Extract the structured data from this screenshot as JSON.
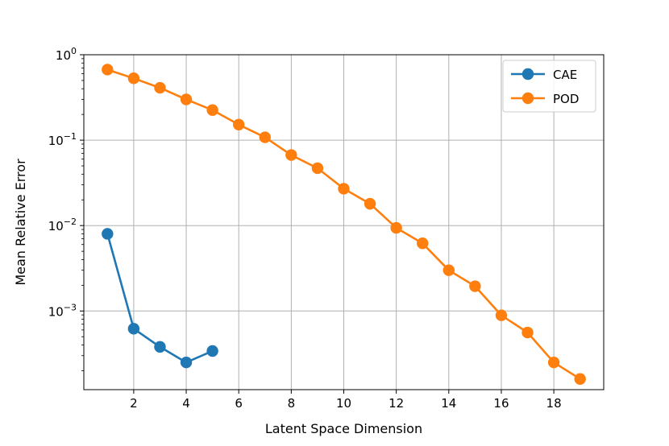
{
  "chart_data": {
    "type": "line",
    "xlabel": "Latent Space Dimension",
    "ylabel": "Mean Relative Error",
    "y_scale": "log",
    "xlim": [
      0.1,
      19.9
    ],
    "ylim": [
      0.00012,
      1.0
    ],
    "x_ticks": [
      2,
      4,
      6,
      8,
      10,
      12,
      14,
      16,
      18
    ],
    "x_tick_labels": [
      "2",
      "4",
      "6",
      "8",
      "10",
      "12",
      "14",
      "16",
      "18"
    ],
    "y_ticks": [
      0.001,
      0.01,
      0.1,
      1
    ],
    "y_tick_labels": [
      {
        "base": "10",
        "exp": "−3"
      },
      {
        "base": "10",
        "exp": "−2"
      },
      {
        "base": "10",
        "exp": "−1"
      },
      {
        "base": "10",
        "exp": "0"
      }
    ],
    "grid": true,
    "legend_position": "top-right",
    "series": [
      {
        "name": "CAE",
        "color": "#1f77b4",
        "x": [
          1,
          2,
          3,
          4,
          5
        ],
        "y": [
          0.008,
          0.00062,
          0.00038,
          0.00025,
          0.00034
        ]
      },
      {
        "name": "POD",
        "color": "#ff7f0e",
        "x": [
          1,
          2,
          3,
          4,
          5,
          6,
          7,
          8,
          9,
          10,
          11,
          12,
          13,
          14,
          15,
          16,
          17,
          18,
          19
        ],
        "y": [
          0.67,
          0.53,
          0.41,
          0.3,
          0.225,
          0.152,
          0.108,
          0.067,
          0.047,
          0.027,
          0.018,
          0.0094,
          0.0062,
          0.003,
          0.00195,
          0.00089,
          0.00056,
          0.00025,
          0.00016
        ]
      }
    ]
  }
}
